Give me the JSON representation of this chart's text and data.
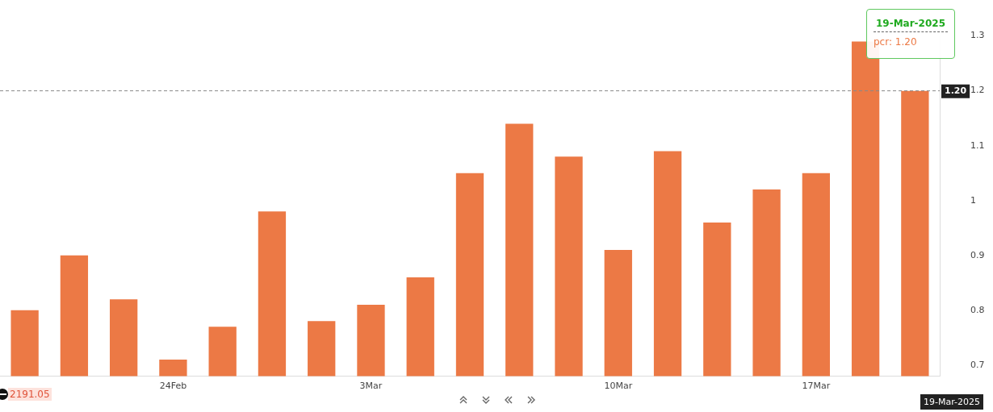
{
  "chart_data": {
    "type": "bar",
    "categories": [
      null,
      null,
      null,
      "24Feb",
      null,
      null,
      null,
      "3Mar",
      null,
      null,
      null,
      null,
      "10Mar",
      null,
      null,
      null,
      "17Mar",
      null,
      null
    ],
    "series": [
      {
        "color": "#ec7945",
        "values": [
          0.8,
          0.9,
          0.82,
          0.71,
          0.77,
          0.98,
          0.78,
          0.81,
          0.86,
          1.05,
          1.14,
          1.08,
          0.91,
          1.09,
          0.96,
          1.02,
          1.05,
          1.29,
          1.2
        ]
      }
    ],
    "ylim": [
      0.68,
      1.3
    ],
    "yticks": [
      0.7,
      0.8,
      0.9,
      1,
      1.1,
      1.2,
      1.3
    ],
    "grid": false,
    "legend": false,
    "ref_lines": [
      {
        "axis": "y",
        "value": 1.2,
        "label": "1.20",
        "color": "#888888",
        "line_style": "dashed"
      }
    ],
    "annotations": [
      "19-Mar-2025",
      "pcr: 1.20",
      "2191.05",
      "19-Mar-2025"
    ]
  }
}
